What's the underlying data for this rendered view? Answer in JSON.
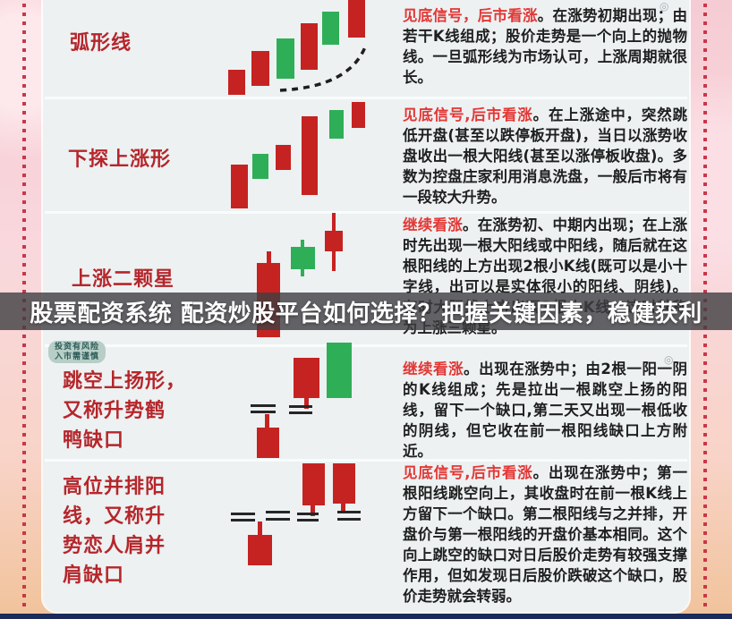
{
  "banner": {
    "text": "股票配资系统 配资炒股平台如何选择？把握关键因素，稳健获利",
    "bg": "rgba(62,62,66,0.8)",
    "fg": "#ffffff"
  },
  "disclaimer": {
    "line1": "投资有风险",
    "line2": "入市需谨慎"
  },
  "watermark_glyph": "◎",
  "colors": {
    "candle_red": "#c52322",
    "candle_green": "#2fae58",
    "gap_mark": "#262626",
    "label_red": "#b5262b",
    "signal_red": "#e23836",
    "body_text": "#1f1f1f",
    "panel_bg": "#edf1f2",
    "border_pink": "#f6ccd4",
    "bottom_navy": "#1b2a5a"
  },
  "rows": [
    {
      "name_lines": [
        "弧形线"
      ],
      "pattern_name": "弧形线",
      "signal": "见底信号，后市看涨",
      "description": "。在涨势初期出现；由若干K线组成；股价走势是一个向上的抛物线。一旦弧形线为市场认可，上涨周期就很长。"
    },
    {
      "name_lines": [
        "下探上涨形"
      ],
      "pattern_name": "下探上涨形",
      "signal": "见底信号,后市看涨",
      "description": "。在上涨途中，突然跳低开盘(甚至以跌停板开盘)，当日以涨势收盘收出一根大阳线(甚至以涨停板收盘)。多数为控盘庄家利用消息洗盘，一般后市将有一段较大升势。"
    },
    {
      "name_lines": [
        "上涨二颗星"
      ],
      "pattern_name": "上涨二颗星",
      "signal": "继续看涨",
      "description": "。在涨势初、中期内出现；在上涨时先出现一根大阳线或中阳线，随后就在这根阳线的上方出现2根小K线(既可以是小十字线，出可以是实体很小的阳线、阴线)。有时大阳线上方出现3根小K线，这时就称为上涨三颗星。"
    },
    {
      "name_lines": [
        "跳空上扬形，",
        "又称升势鹤",
        "鸭缺口"
      ],
      "pattern_name": "跳空上扬形，又称升势鹤鸭缺口",
      "signal": "继续看涨",
      "description": "。出现在涨势中；由2根一阳一阴的K线组成；先是拉出一根跳空上扬的阳线，留下一个缺口,第二天又出现一根低收的阴线，但它收在前一根阳线缺口上方附近。"
    },
    {
      "name_lines": [
        "高位并排阳",
        "线，又称升",
        "势恋人肩并",
        "肩缺口"
      ],
      "pattern_name": "高位并排阳线，又称升势恋人肩并肩缺口",
      "signal": "见底信号,后市看涨",
      "description": "。出现在涨势中；第一根阳线跳空向上，其收盘时在前一根K线上方留下一个缺口。第二根阳线与之并排，开盘价与第一根阳线的开盘价基本相同。这个向上跳空的缺口对日后股价走势有较强支撑作用，但如发现日后股价跌破这个缺口，股价走势就会转弱。"
    }
  ],
  "chart_data": [
    {
      "pattern": "弧形线",
      "type": "candlestick",
      "note": "six rising candles along a dashed upward parabolic arc",
      "candles": [
        {
          "color": "red",
          "body": [
            255,
            78,
            19,
            28
          ]
        },
        {
          "color": "red",
          "body": [
            281,
            57,
            20,
            39
          ]
        },
        {
          "color": "green",
          "body": [
            309,
            43,
            20,
            45
          ]
        },
        {
          "color": "red",
          "body": [
            336,
            26,
            19,
            52
          ]
        },
        {
          "color": "green",
          "body": [
            360,
            13,
            19,
            37
          ]
        },
        {
          "color": "red",
          "body": [
            389,
            0,
            19,
            42
          ]
        }
      ],
      "arc": {
        "from": [
          313,
          101
        ],
        "ctrl": [
          392,
          97
        ],
        "to": [
          409,
          50
        ]
      }
    },
    {
      "pattern": "下探上涨形",
      "type": "candlestick",
      "candles": [
        {
          "color": "red",
          "body": [
            258,
            184,
            19,
            49
          ]
        },
        {
          "color": "green",
          "body": [
            282,
            172,
            18,
            28
          ]
        },
        {
          "color": "red",
          "body": [
            308,
            162,
            17,
            28
          ]
        },
        {
          "color": "red",
          "body": [
            337,
            130,
            18,
            88
          ]
        },
        {
          "color": "green",
          "body": [
            368,
            123,
            16,
            32
          ]
        },
        {
          "color": "red",
          "body": [
            393,
            114,
            15,
            29
          ]
        }
      ]
    },
    {
      "pattern": "上涨二颗星",
      "type": "candlestick",
      "candles": [
        {
          "color": "red",
          "body": [
            287,
            294,
            26,
            83
          ],
          "wick_top": [
            298,
            281,
            5,
            13
          ]
        },
        {
          "color": "green",
          "body": [
            325,
            276,
            27,
            25
          ],
          "wick_top": [
            336,
            268,
            4,
            8
          ],
          "wick_bottom": [
            336,
            301,
            4,
            8
          ]
        },
        {
          "color": "red",
          "body": [
            363,
            258,
            20,
            23
          ],
          "wick_top": [
            371,
            238,
            4,
            20
          ],
          "wick_bottom": [
            371,
            281,
            4,
            22
          ]
        }
      ]
    },
    {
      "pattern": "跳空上扬形",
      "type": "candlestick",
      "candles": [
        {
          "color": "red",
          "body": [
            287,
            478,
            25,
            34
          ],
          "wick_top": [
            296,
            463,
            5,
            15
          ]
        },
        {
          "color": "red",
          "body": [
            328,
            400,
            29,
            45
          ],
          "wick_bottom": [
            340,
            445,
            5,
            12
          ]
        },
        {
          "color": "green",
          "body": [
            365,
            383,
            28,
            62
          ]
        }
      ],
      "gap_marks": [
        [
          280,
          452,
          28
        ],
        [
          280,
          459,
          28
        ],
        [
          323,
          453,
          26
        ],
        [
          323,
          460,
          26
        ]
      ]
    },
    {
      "pattern": "高位并排阳线",
      "type": "candlestick",
      "candles": [
        {
          "color": "red",
          "body": [
            277,
            598,
            27,
            34
          ],
          "wick_top": [
            288,
            583,
            5,
            15
          ]
        },
        {
          "color": "red",
          "body": [
            338,
            518,
            25,
            47
          ],
          "wick_bottom": [
            347,
            565,
            5,
            12
          ]
        },
        {
          "color": "red",
          "body": [
            372,
            518,
            25,
            45
          ],
          "wick_bottom": [
            381,
            563,
            5,
            10
          ]
        }
      ],
      "gap_marks": [
        [
          258,
          573,
          27
        ],
        [
          258,
          580,
          27
        ],
        [
          297,
          571,
          27
        ],
        [
          297,
          579,
          27
        ],
        [
          332,
          573,
          24
        ],
        [
          332,
          580,
          24
        ],
        [
          377,
          571,
          26
        ],
        [
          377,
          579,
          26
        ]
      ]
    }
  ]
}
